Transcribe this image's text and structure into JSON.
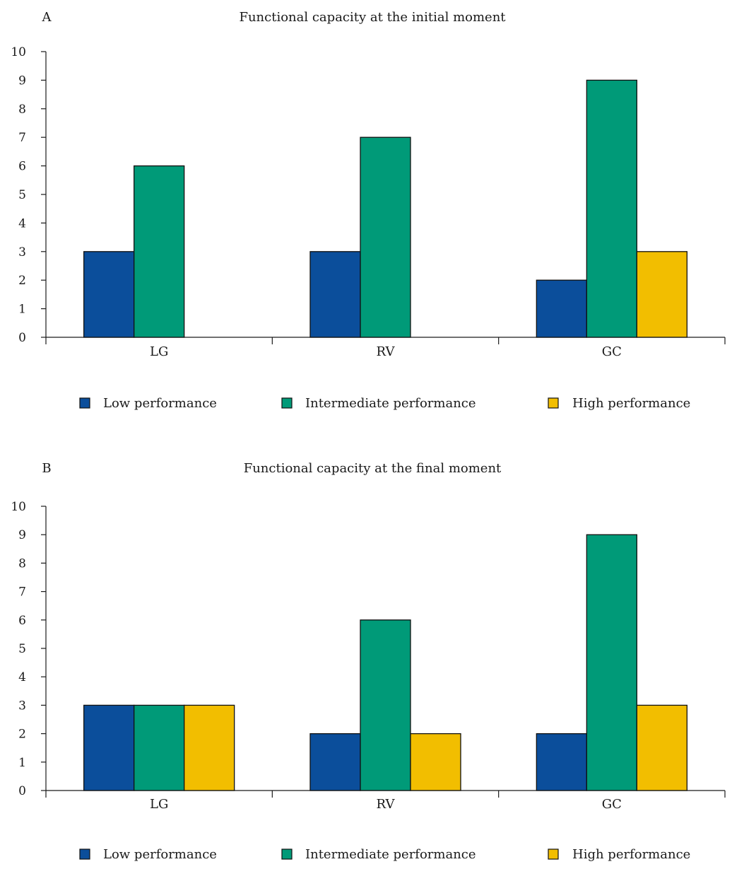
{
  "colors": {
    "low": "#0b4e9b",
    "intermediate": "#009a78",
    "high": "#f2be00",
    "axis": "#1a1a1a"
  },
  "chart_data": [
    {
      "type": "bar",
      "panel_label": "A",
      "title": "Functional capacity at the initial moment",
      "categories": [
        "LG",
        "RV",
        "GC"
      ],
      "series": [
        {
          "name": "Low performance",
          "values": [
            3,
            3,
            2
          ]
        },
        {
          "name": "Intermediate performance",
          "values": [
            6,
            7,
            9
          ]
        },
        {
          "name": "High performance",
          "values": [
            0,
            0,
            3
          ]
        }
      ],
      "ylim": [
        0,
        10
      ],
      "yticks": [
        "0",
        "1",
        "2",
        "3",
        "4",
        "5",
        "6",
        "7",
        "8",
        "9",
        "10"
      ],
      "xlabel": "",
      "ylabel": "",
      "legend_position": "bottom",
      "grid": false
    },
    {
      "type": "bar",
      "panel_label": "B",
      "title": "Functional capacity at the final moment",
      "categories": [
        "LG",
        "RV",
        "GC"
      ],
      "series": [
        {
          "name": "Low performance",
          "values": [
            3,
            2,
            2
          ]
        },
        {
          "name": "Intermediate performance",
          "values": [
            3,
            6,
            9
          ]
        },
        {
          "name": "High performance",
          "values": [
            3,
            2,
            3
          ]
        }
      ],
      "ylim": [
        0,
        10
      ],
      "yticks": [
        "0",
        "1",
        "2",
        "3",
        "4",
        "5",
        "6",
        "7",
        "8",
        "9",
        "10"
      ],
      "xlabel": "",
      "ylabel": "",
      "legend_position": "bottom",
      "grid": false
    }
  ]
}
